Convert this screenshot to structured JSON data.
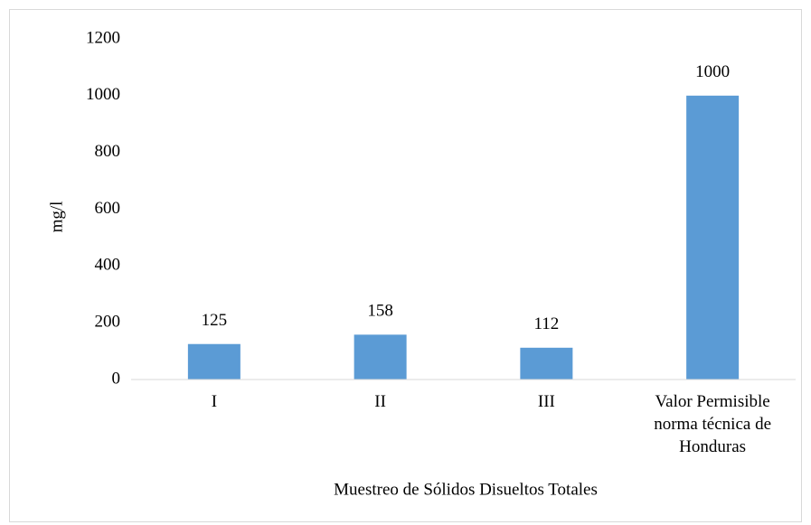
{
  "chart_data": {
    "type": "bar",
    "categories": [
      "I",
      "II",
      "III",
      "Valor Permisible norma técnica de Honduras"
    ],
    "values": [
      125,
      158,
      112,
      1000
    ],
    "color": "#5b9bd5",
    "ylabel": "mg/l",
    "xlabel": "Muestreo de Sólidos Disueltos Totales",
    "ylim": [
      0,
      1200
    ],
    "yticks": [
      0,
      200,
      400,
      600,
      800,
      1000,
      1200
    ],
    "grid": false
  }
}
